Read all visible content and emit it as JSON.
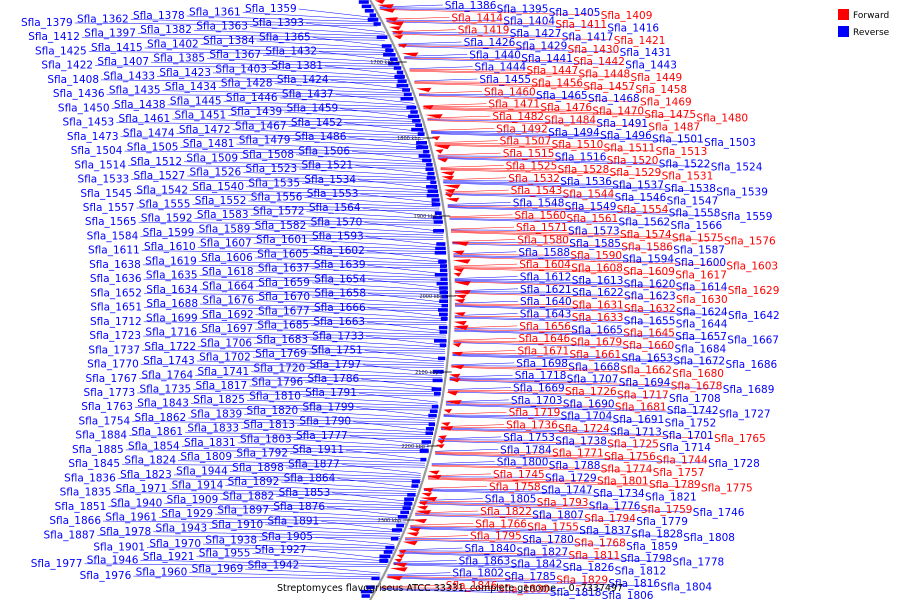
{
  "caption": "Streptomyces flavogriseus ATCC 33331, complete genome. - 0..7337497",
  "legend": [
    {
      "label": "Forward",
      "color": "#ff0000"
    },
    {
      "label": "Reverse",
      "color": "#0000ff"
    }
  ],
  "colors": {
    "forward": "#ff0000",
    "reverse": "#0000ff",
    "backbone": "#9a9a9a"
  },
  "ticks": [
    "1700 kbp",
    "1800 kbp",
    "1900 kbp",
    "2000 kbp",
    "2100 kbp",
    "2200 kbp",
    "2300 kbp"
  ],
  "left_labels": [
    "Sfla_1359",
    "Sfla_1361",
    "Sfla_1378",
    "Sfla_1362",
    "Sfla_1379",
    "Sfla_1393",
    "Sfla_1363",
    "Sfla_1382",
    "Sfla_1397",
    "Sfla_1412",
    "Sfla_1365",
    "Sfla_1384",
    "Sfla_1402",
    "Sfla_1415",
    "Sfla_1425",
    "Sfla_1432",
    "Sfla_1367",
    "Sfla_1385",
    "Sfla_1407",
    "Sfla_1422",
    "Sfla_1381",
    "Sfla_1403",
    "Sfla_1423",
    "Sfla_1433",
    "Sfla_1408",
    "Sfla_1424",
    "Sfla_1428",
    "Sfla_1434",
    "Sfla_1435",
    "Sfla_1436",
    "Sfla_1437",
    "Sfla_1446",
    "Sfla_1445",
    "Sfla_1438",
    "Sfla_1450",
    "Sfla_1459",
    "Sfla_1439",
    "Sfla_1451",
    "Sfla_1461",
    "Sfla_1453",
    "Sfla_1452",
    "Sfla_1467",
    "Sfla_1472",
    "Sfla_1474",
    "Sfla_1473",
    "Sfla_1486",
    "Sfla_1479",
    "Sfla_1481",
    "Sfla_1505",
    "Sfla_1504",
    "Sfla_1506",
    "Sfla_1508",
    "Sfla_1509",
    "Sfla_1512",
    "Sfla_1514",
    "Sfla_1521",
    "Sfla_1523",
    "Sfla_1526",
    "Sfla_1527",
    "Sfla_1533",
    "Sfla_1534",
    "Sfla_1535",
    "Sfla_1540",
    "Sfla_1542",
    "Sfla_1545",
    "Sfla_1553",
    "Sfla_1556",
    "Sfla_1552",
    "Sfla_1555",
    "Sfla_1557",
    "Sfla_1564",
    "Sfla_1572",
    "Sfla_1583",
    "Sfla_1592",
    "Sfla_1565",
    "Sfla_1570",
    "Sfla_1582",
    "Sfla_1589",
    "Sfla_1599",
    "Sfla_1584",
    "Sfla_1593",
    "Sfla_1601",
    "Sfla_1607",
    "Sfla_1610",
    "Sfla_1611",
    "Sfla_1602",
    "Sfla_1605",
    "Sfla_1606",
    "Sfla_1619",
    "Sfla_1638",
    "Sfla_1639",
    "Sfla_1637",
    "Sfla_1618",
    "Sfla_1635",
    "Sfla_1636",
    "Sfla_1654",
    "Sfla_1659",
    "Sfla_1664",
    "Sfla_1634",
    "Sfla_1652",
    "Sfla_1658",
    "Sfla_1670",
    "Sfla_1676",
    "Sfla_1688",
    "Sfla_1651",
    "Sfla_1666",
    "Sfla_1677",
    "Sfla_1692",
    "Sfla_1699",
    "Sfla_1712",
    "Sfla_1663",
    "Sfla_1685",
    "Sfla_1697",
    "Sfla_1716",
    "Sfla_1723",
    "Sfla_1733",
    "Sfla_1683",
    "Sfla_1706",
    "Sfla_1722",
    "Sfla_1737",
    "Sfla_1751",
    "Sfla_1769",
    "Sfla_1702",
    "Sfla_1743",
    "Sfla_1770",
    "Sfla_1797",
    "Sfla_1720",
    "Sfla_1741",
    "Sfla_1764",
    "Sfla_1767",
    "Sfla_1786",
    "Sfla_1796",
    "Sfla_1817",
    "Sfla_1735",
    "Sfla_1773",
    "Sfla_1791",
    "Sfla_1810",
    "Sfla_1825",
    "Sfla_1843",
    "Sfla_1763",
    "Sfla_1799",
    "Sfla_1820",
    "Sfla_1839",
    "Sfla_1862",
    "Sfla_1754",
    "Sfla_1790",
    "Sfla_1813",
    "Sfla_1833",
    "Sfla_1861",
    "Sfla_1884",
    "Sfla_1777",
    "Sfla_1803",
    "Sfla_1831",
    "Sfla_1854",
    "Sfla_1885",
    "Sfla_1911",
    "Sfla_1792",
    "Sfla_1809",
    "Sfla_1824",
    "Sfla_1845",
    "Sfla_1877",
    "Sfla_1898",
    "Sfla_1944",
    "Sfla_1823",
    "Sfla_1836",
    "Sfla_1864",
    "Sfla_1892",
    "Sfla_1914",
    "Sfla_1971",
    "Sfla_1835",
    "Sfla_1853",
    "Sfla_1882",
    "Sfla_1909",
    "Sfla_1940",
    "Sfla_1851",
    "Sfla_1876",
    "Sfla_1897",
    "Sfla_1929",
    "Sfla_1961",
    "Sfla_1866",
    "Sfla_1891",
    "Sfla_1910",
    "Sfla_1943",
    "Sfla_1978",
    "Sfla_1887",
    "Sfla_1905",
    "Sfla_1938",
    "Sfla_1970",
    "Sfla_1901",
    "Sfla_1927",
    "Sfla_1955",
    "Sfla_1921",
    "Sfla_1946",
    "Sfla_1977",
    "Sfla_1942",
    "Sfla_1969",
    "Sfla_1960",
    "Sfla_1976"
  ],
  "right_labels": [
    {
      "t": "Sfla_1386",
      "f": 0
    },
    {
      "t": "Sfla_1395",
      "f": 0
    },
    {
      "t": "Sfla_1405",
      "f": 0
    },
    {
      "t": "Sfla_1409",
      "f": 1
    },
    {
      "t": "Sfla_1414",
      "f": 1
    },
    {
      "t": "Sfla_1404",
      "f": 0
    },
    {
      "t": "Sfla_1411",
      "f": 1
    },
    {
      "t": "Sfla_1416",
      "f": 0
    },
    {
      "t": "Sfla_1419",
      "f": 1
    },
    {
      "t": "Sfla_1427",
      "f": 0
    },
    {
      "t": "Sfla_1417",
      "f": 0
    },
    {
      "t": "Sfla_1421",
      "f": 1
    },
    {
      "t": "Sfla_1426",
      "f": 0
    },
    {
      "t": "Sfla_1429",
      "f": 0
    },
    {
      "t": "Sfla_1430",
      "f": 1
    },
    {
      "t": "Sfla_1431",
      "f": 0
    },
    {
      "t": "Sfla_1440",
      "f": 0
    },
    {
      "t": "Sfla_1441",
      "f": 0
    },
    {
      "t": "Sfla_1442",
      "f": 1
    },
    {
      "t": "Sfla_1443",
      "f": 0
    },
    {
      "t": "Sfla_1444",
      "f": 0
    },
    {
      "t": "Sfla_1447",
      "f": 1
    },
    {
      "t": "Sfla_1448",
      "f": 1
    },
    {
      "t": "Sfla_1449",
      "f": 1
    },
    {
      "t": "Sfla_1455",
      "f": 0
    },
    {
      "t": "Sfla_1456",
      "f": 1
    },
    {
      "t": "Sfla_1457",
      "f": 1
    },
    {
      "t": "Sfla_1458",
      "f": 1
    },
    {
      "t": "Sfla_1460",
      "f": 1
    },
    {
      "t": "Sfla_1465",
      "f": 0
    },
    {
      "t": "Sfla_1468",
      "f": 0
    },
    {
      "t": "Sfla_1469",
      "f": 1
    },
    {
      "t": "Sfla_1471",
      "f": 1
    },
    {
      "t": "Sfla_1476",
      "f": 1
    },
    {
      "t": "Sfla_1470",
      "f": 1
    },
    {
      "t": "Sfla_1475",
      "f": 1
    },
    {
      "t": "Sfla_1480",
      "f": 1
    },
    {
      "t": "Sfla_1482",
      "f": 1
    },
    {
      "t": "Sfla_1484",
      "f": 1
    },
    {
      "t": "Sfla_1491",
      "f": 0
    },
    {
      "t": "Sfla_1487",
      "f": 1
    },
    {
      "t": "Sfla_1492",
      "f": 1
    },
    {
      "t": "Sfla_1494",
      "f": 0
    },
    {
      "t": "Sfla_1496",
      "f": 0
    },
    {
      "t": "Sfla_1501",
      "f": 0
    },
    {
      "t": "Sfla_1503",
      "f": 0
    },
    {
      "t": "Sfla_1507",
      "f": 1
    },
    {
      "t": "Sfla_1510",
      "f": 1
    },
    {
      "t": "Sfla_1511",
      "f": 1
    },
    {
      "t": "Sfla_1513",
      "f": 1
    },
    {
      "t": "Sfla_1515",
      "f": 1
    },
    {
      "t": "Sfla_1516",
      "f": 0
    },
    {
      "t": "Sfla_1520",
      "f": 1
    },
    {
      "t": "Sfla_1522",
      "f": 0
    },
    {
      "t": "Sfla_1524",
      "f": 0
    },
    {
      "t": "Sfla_1525",
      "f": 1
    },
    {
      "t": "Sfla_1528",
      "f": 1
    },
    {
      "t": "Sfla_1529",
      "f": 1
    },
    {
      "t": "Sfla_1531",
      "f": 1
    },
    {
      "t": "Sfla_1532",
      "f": 1
    },
    {
      "t": "Sfla_1536",
      "f": 0
    },
    {
      "t": "Sfla_1537",
      "f": 0
    },
    {
      "t": "Sfla_1538",
      "f": 0
    },
    {
      "t": "Sfla_1539",
      "f": 0
    },
    {
      "t": "Sfla_1543",
      "f": 1
    },
    {
      "t": "Sfla_1544",
      "f": 1
    },
    {
      "t": "Sfla_1546",
      "f": 0
    },
    {
      "t": "Sfla_1547",
      "f": 0
    },
    {
      "t": "Sfla_1548",
      "f": 0
    },
    {
      "t": "Sfla_1549",
      "f": 0
    },
    {
      "t": "Sfla_1554",
      "f": 1
    },
    {
      "t": "Sfla_1558",
      "f": 0
    },
    {
      "t": "Sfla_1559",
      "f": 0
    },
    {
      "t": "Sfla_1560",
      "f": 1
    },
    {
      "t": "Sfla_1561",
      "f": 1
    },
    {
      "t": "Sfla_1562",
      "f": 0
    },
    {
      "t": "Sfla_1566",
      "f": 0
    },
    {
      "t": "Sfla_1571",
      "f": 1
    },
    {
      "t": "Sfla_1573",
      "f": 0
    },
    {
      "t": "Sfla_1574",
      "f": 1
    },
    {
      "t": "Sfla_1575",
      "f": 1
    },
    {
      "t": "Sfla_1576",
      "f": 1
    },
    {
      "t": "Sfla_1580",
      "f": 1
    },
    {
      "t": "Sfla_1585",
      "f": 0
    },
    {
      "t": "Sfla_1586",
      "f": 1
    },
    {
      "t": "Sfla_1587",
      "f": 0
    },
    {
      "t": "Sfla_1588",
      "f": 0
    },
    {
      "t": "Sfla_1590",
      "f": 1
    },
    {
      "t": "Sfla_1594",
      "f": 0
    },
    {
      "t": "Sfla_1600",
      "f": 0
    },
    {
      "t": "Sfla_1603",
      "f": 1
    },
    {
      "t": "Sfla_1604",
      "f": 1
    },
    {
      "t": "Sfla_1608",
      "f": 1
    },
    {
      "t": "Sfla_1609",
      "f": 1
    },
    {
      "t": "Sfla_1617",
      "f": 1
    },
    {
      "t": "Sfla_1612",
      "f": 0
    },
    {
      "t": "Sfla_1613",
      "f": 0
    },
    {
      "t": "Sfla_1620",
      "f": 0
    },
    {
      "t": "Sfla_1614",
      "f": 0
    },
    {
      "t": "Sfla_1629",
      "f": 1
    },
    {
      "t": "Sfla_1621",
      "f": 0
    },
    {
      "t": "Sfla_1622",
      "f": 0
    },
    {
      "t": "Sfla_1623",
      "f": 0
    },
    {
      "t": "Sfla_1630",
      "f": 1
    },
    {
      "t": "Sfla_1640",
      "f": 0
    },
    {
      "t": "Sfla_1631",
      "f": 1
    },
    {
      "t": "Sfla_1632",
      "f": 1
    },
    {
      "t": "Sfla_1624",
      "f": 0
    },
    {
      "t": "Sfla_1642",
      "f": 0
    },
    {
      "t": "Sfla_1643",
      "f": 0
    },
    {
      "t": "Sfla_1633",
      "f": 1
    },
    {
      "t": "Sfla_1655",
      "f": 0
    },
    {
      "t": "Sfla_1644",
      "f": 0
    },
    {
      "t": "Sfla_1656",
      "f": 1
    },
    {
      "t": "Sfla_1665",
      "f": 0
    },
    {
      "t": "Sfla_1645",
      "f": 1
    },
    {
      "t": "Sfla_1657",
      "f": 0
    },
    {
      "t": "Sfla_1667",
      "f": 0
    },
    {
      "t": "Sfla_1646",
      "f": 1
    },
    {
      "t": "Sfla_1679",
      "f": 1
    },
    {
      "t": "Sfla_1660",
      "f": 1
    },
    {
      "t": "Sfla_1684",
      "f": 0
    },
    {
      "t": "Sfla_1671",
      "f": 1
    },
    {
      "t": "Sfla_1661",
      "f": 1
    },
    {
      "t": "Sfla_1653",
      "f": 0
    },
    {
      "t": "Sfla_1672",
      "f": 0
    },
    {
      "t": "Sfla_1686",
      "f": 0
    },
    {
      "t": "Sfla_1698",
      "f": 0
    },
    {
      "t": "Sfla_1668",
      "f": 0
    },
    {
      "t": "Sfla_1662",
      "f": 1
    },
    {
      "t": "Sfla_1680",
      "f": 1
    },
    {
      "t": "Sfla_1718",
      "f": 0
    },
    {
      "t": "Sfla_1707",
      "f": 0
    },
    {
      "t": "Sfla_1694",
      "f": 0
    },
    {
      "t": "Sfla_1678",
      "f": 1
    },
    {
      "t": "Sfla_1689",
      "f": 0
    },
    {
      "t": "Sfla_1669",
      "f": 0
    },
    {
      "t": "Sfla_1726",
      "f": 1
    },
    {
      "t": "Sfla_1717",
      "f": 1
    },
    {
      "t": "Sfla_1708",
      "f": 0
    },
    {
      "t": "Sfla_1703",
      "f": 0
    },
    {
      "t": "Sfla_1690",
      "f": 0
    },
    {
      "t": "Sfla_1681",
      "f": 1
    },
    {
      "t": "Sfla_1742",
      "f": 0
    },
    {
      "t": "Sfla_1727",
      "f": 0
    },
    {
      "t": "Sfla_1719",
      "f": 1
    },
    {
      "t": "Sfla_1704",
      "f": 0
    },
    {
      "t": "Sfla_1691",
      "f": 0
    },
    {
      "t": "Sfla_1752",
      "f": 0
    },
    {
      "t": "Sfla_1736",
      "f": 1
    },
    {
      "t": "Sfla_1724",
      "f": 1
    },
    {
      "t": "Sfla_1713",
      "f": 0
    },
    {
      "t": "Sfla_1701",
      "f": 0
    },
    {
      "t": "Sfla_1765",
      "f": 1
    },
    {
      "t": "Sfla_1753",
      "f": 0
    },
    {
      "t": "Sfla_1738",
      "f": 0
    },
    {
      "t": "Sfla_1725",
      "f": 1
    },
    {
      "t": "Sfla_1714",
      "f": 0
    },
    {
      "t": "Sfla_1784",
      "f": 0
    },
    {
      "t": "Sfla_1771",
      "f": 1
    },
    {
      "t": "Sfla_1756",
      "f": 1
    },
    {
      "t": "Sfla_1744",
      "f": 1
    },
    {
      "t": "Sfla_1728",
      "f": 0
    },
    {
      "t": "Sfla_1800",
      "f": 0
    },
    {
      "t": "Sfla_1788",
      "f": 0
    },
    {
      "t": "Sfla_1774",
      "f": 1
    },
    {
      "t": "Sfla_1757",
      "f": 1
    },
    {
      "t": "Sfla_1745",
      "f": 1
    },
    {
      "t": "Sfla_1729",
      "f": 0
    },
    {
      "t": "Sfla_1801",
      "f": 1
    },
    {
      "t": "Sfla_1789",
      "f": 1
    },
    {
      "t": "Sfla_1775",
      "f": 1
    },
    {
      "t": "Sfla_1758",
      "f": 1
    },
    {
      "t": "Sfla_1747",
      "f": 0
    },
    {
      "t": "Sfla_1734",
      "f": 0
    },
    {
      "t": "Sfla_1821",
      "f": 0
    },
    {
      "t": "Sfla_1805",
      "f": 0
    },
    {
      "t": "Sfla_1793",
      "f": 1
    },
    {
      "t": "Sfla_1776",
      "f": 0
    },
    {
      "t": "Sfla_1759",
      "f": 1
    },
    {
      "t": "Sfla_1746",
      "f": 0
    },
    {
      "t": "Sfla_1822",
      "f": 1
    },
    {
      "t": "Sfla_1807",
      "f": 0
    },
    {
      "t": "Sfla_1794",
      "f": 1
    },
    {
      "t": "Sfla_1779",
      "f": 0
    },
    {
      "t": "Sfla_1766",
      "f": 1
    },
    {
      "t": "Sfla_1755",
      "f": 1
    },
    {
      "t": "Sfla_1837",
      "f": 0
    },
    {
      "t": "Sfla_1828",
      "f": 0
    },
    {
      "t": "Sfla_1808",
      "f": 0
    },
    {
      "t": "Sfla_1795",
      "f": 1
    },
    {
      "t": "Sfla_1780",
      "f": 0
    },
    {
      "t": "Sfla_1768",
      "f": 1
    },
    {
      "t": "Sfla_1859",
      "f": 0
    },
    {
      "t": "Sfla_1840",
      "f": 0
    },
    {
      "t": "Sfla_1827",
      "f": 0
    },
    {
      "t": "Sfla_1811",
      "f": 1
    },
    {
      "t": "Sfla_1798",
      "f": 0
    },
    {
      "t": "Sfla_1778",
      "f": 0
    },
    {
      "t": "Sfla_1863",
      "f": 0
    },
    {
      "t": "Sfla_1842",
      "f": 0
    },
    {
      "t": "Sfla_1826",
      "f": 0
    },
    {
      "t": "Sfla_1812",
      "f": 0
    },
    {
      "t": "Sfla_1802",
      "f": 0
    },
    {
      "t": "Sfla_1785",
      "f": 0
    },
    {
      "t": "Sfla_1829",
      "f": 1
    },
    {
      "t": "Sfla_1816",
      "f": 0
    },
    {
      "t": "Sfla_1804",
      "f": 0
    },
    {
      "t": "Sfla_1846",
      "f": 1
    },
    {
      "t": "Sfla_1830",
      "f": 1
    },
    {
      "t": "Sfla_1818",
      "f": 0
    },
    {
      "t": "Sfla_1806",
      "f": 0
    }
  ]
}
